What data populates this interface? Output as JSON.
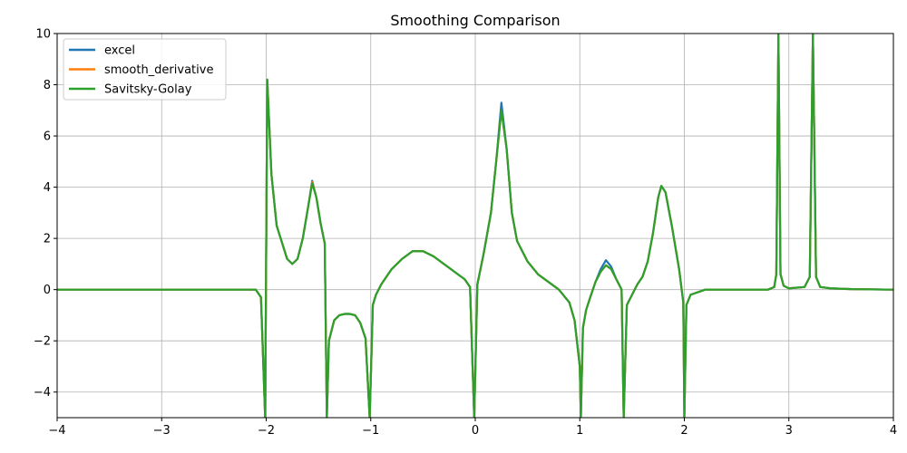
{
  "chart_data": {
    "type": "line",
    "title": "Smoothing Comparison",
    "xlabel": "",
    "ylabel": "",
    "xlim": [
      -4,
      4
    ],
    "ylim": [
      -5,
      10
    ],
    "xticks": [
      -4,
      -3,
      -2,
      -1,
      0,
      1,
      2,
      3,
      4
    ],
    "yticks": [
      -4,
      -2,
      0,
      2,
      4,
      6,
      8,
      10
    ],
    "grid": true,
    "legend": "top-left",
    "series": [
      {
        "name": "excel",
        "color": "#1f77b4",
        "points": [
          [
            -4,
            0
          ],
          [
            -2.3,
            0
          ],
          [
            -2.1,
            0
          ],
          [
            -2.05,
            -0.3
          ],
          [
            -2.01,
            -5
          ],
          [
            -1.99,
            8.2
          ],
          [
            -1.95,
            4.5
          ],
          [
            -1.9,
            2.5
          ],
          [
            -1.8,
            1.2
          ],
          [
            -1.75,
            1.0
          ],
          [
            -1.7,
            1.2
          ],
          [
            -1.65,
            2.0
          ],
          [
            -1.6,
            3.2
          ],
          [
            -1.56,
            4.25
          ],
          [
            -1.52,
            3.6
          ],
          [
            -1.48,
            2.6
          ],
          [
            -1.44,
            1.8
          ],
          [
            -1.42,
            -5
          ],
          [
            -1.4,
            -2.0
          ],
          [
            -1.35,
            -1.2
          ],
          [
            -1.3,
            -1.0
          ],
          [
            -1.25,
            -0.95
          ],
          [
            -1.2,
            -0.95
          ],
          [
            -1.15,
            -1.0
          ],
          [
            -1.1,
            -1.3
          ],
          [
            -1.05,
            -1.9
          ],
          [
            -1.01,
            -5
          ],
          [
            -0.98,
            -0.6
          ],
          [
            -0.95,
            -0.2
          ],
          [
            -0.9,
            0.2
          ],
          [
            -0.8,
            0.8
          ],
          [
            -0.7,
            1.2
          ],
          [
            -0.6,
            1.5
          ],
          [
            -0.5,
            1.5
          ],
          [
            -0.4,
            1.3
          ],
          [
            -0.3,
            1.0
          ],
          [
            -0.2,
            0.7
          ],
          [
            -0.1,
            0.4
          ],
          [
            -0.05,
            0.1
          ],
          [
            -0.01,
            -5
          ],
          [
            0.02,
            0.2
          ],
          [
            0.08,
            1.4
          ],
          [
            0.15,
            3.0
          ],
          [
            0.2,
            5.0
          ],
          [
            0.25,
            7.3
          ],
          [
            0.3,
            5.5
          ],
          [
            0.35,
            3.0
          ],
          [
            0.4,
            1.9
          ],
          [
            0.5,
            1.1
          ],
          [
            0.6,
            0.6
          ],
          [
            0.7,
            0.3
          ],
          [
            0.8,
            0.0
          ],
          [
            0.9,
            -0.5
          ],
          [
            0.95,
            -1.2
          ],
          [
            1.0,
            -3.0
          ],
          [
            1.01,
            -5
          ],
          [
            1.03,
            -1.5
          ],
          [
            1.06,
            -0.8
          ],
          [
            1.1,
            -0.3
          ],
          [
            1.15,
            0.3
          ],
          [
            1.2,
            0.8
          ],
          [
            1.25,
            1.15
          ],
          [
            1.3,
            0.9
          ],
          [
            1.35,
            0.4
          ],
          [
            1.4,
            0.0
          ],
          [
            1.42,
            -5
          ],
          [
            1.45,
            -0.6
          ],
          [
            1.5,
            -0.2
          ],
          [
            1.55,
            0.2
          ],
          [
            1.6,
            0.5
          ],
          [
            1.65,
            1.1
          ],
          [
            1.7,
            2.2
          ],
          [
            1.75,
            3.6
          ],
          [
            1.78,
            4.05
          ],
          [
            1.82,
            3.8
          ],
          [
            1.88,
            2.5
          ],
          [
            1.95,
            0.8
          ],
          [
            1.99,
            -0.5
          ],
          [
            2.0,
            -5
          ],
          [
            2.02,
            -0.6
          ],
          [
            2.06,
            -0.2
          ],
          [
            2.2,
            0
          ],
          [
            2.8,
            0
          ],
          [
            2.86,
            0.1
          ],
          [
            2.88,
            0.6
          ],
          [
            2.9,
            10
          ],
          [
            2.92,
            0.6
          ],
          [
            2.95,
            0.15
          ],
          [
            3.0,
            0.05
          ],
          [
            3.15,
            0.1
          ],
          [
            3.2,
            0.5
          ],
          [
            3.23,
            10
          ],
          [
            3.26,
            0.5
          ],
          [
            3.3,
            0.1
          ],
          [
            3.4,
            0.05
          ],
          [
            3.6,
            0.02
          ],
          [
            4,
            0
          ]
        ]
      },
      {
        "name": "smooth_derivative",
        "color": "#ff7f0e",
        "points": [
          [
            -4,
            0
          ],
          [
            -2.3,
            0
          ],
          [
            -2.1,
            0
          ],
          [
            -2.05,
            -0.3
          ],
          [
            -2.01,
            -5
          ],
          [
            -1.99,
            8.2
          ],
          [
            -1.95,
            4.5
          ],
          [
            -1.9,
            2.5
          ],
          [
            -1.8,
            1.2
          ],
          [
            -1.75,
            1.0
          ],
          [
            -1.7,
            1.2
          ],
          [
            -1.65,
            2.0
          ],
          [
            -1.6,
            3.2
          ],
          [
            -1.56,
            4.2
          ],
          [
            -1.52,
            3.6
          ],
          [
            -1.48,
            2.6
          ],
          [
            -1.44,
            1.8
          ],
          [
            -1.42,
            -5
          ],
          [
            -1.4,
            -2.0
          ],
          [
            -1.35,
            -1.2
          ],
          [
            -1.3,
            -1.0
          ],
          [
            -1.25,
            -0.95
          ],
          [
            -1.2,
            -0.95
          ],
          [
            -1.15,
            -1.0
          ],
          [
            -1.1,
            -1.3
          ],
          [
            -1.05,
            -1.9
          ],
          [
            -1.01,
            -5
          ],
          [
            -0.98,
            -0.6
          ],
          [
            -0.95,
            -0.2
          ],
          [
            -0.9,
            0.2
          ],
          [
            -0.8,
            0.8
          ],
          [
            -0.7,
            1.2
          ],
          [
            -0.6,
            1.5
          ],
          [
            -0.5,
            1.5
          ],
          [
            -0.4,
            1.3
          ],
          [
            -0.3,
            1.0
          ],
          [
            -0.2,
            0.7
          ],
          [
            -0.1,
            0.4
          ],
          [
            -0.05,
            0.1
          ],
          [
            -0.01,
            -5
          ],
          [
            0.02,
            0.2
          ],
          [
            0.08,
            1.4
          ],
          [
            0.15,
            3.0
          ],
          [
            0.2,
            5.0
          ],
          [
            0.25,
            7.0
          ],
          [
            0.3,
            5.5
          ],
          [
            0.35,
            3.0
          ],
          [
            0.4,
            1.9
          ],
          [
            0.5,
            1.1
          ],
          [
            0.6,
            0.6
          ],
          [
            0.7,
            0.3
          ],
          [
            0.8,
            0.0
          ],
          [
            0.9,
            -0.5
          ],
          [
            0.95,
            -1.2
          ],
          [
            1.0,
            -3.0
          ],
          [
            1.01,
            -5
          ],
          [
            1.03,
            -1.5
          ],
          [
            1.06,
            -0.8
          ],
          [
            1.1,
            -0.3
          ],
          [
            1.15,
            0.3
          ],
          [
            1.2,
            0.7
          ],
          [
            1.25,
            0.95
          ],
          [
            1.3,
            0.8
          ],
          [
            1.35,
            0.4
          ],
          [
            1.4,
            0.0
          ],
          [
            1.42,
            -5
          ],
          [
            1.45,
            -0.6
          ],
          [
            1.5,
            -0.2
          ],
          [
            1.55,
            0.2
          ],
          [
            1.6,
            0.5
          ],
          [
            1.65,
            1.1
          ],
          [
            1.7,
            2.2
          ],
          [
            1.75,
            3.6
          ],
          [
            1.78,
            4.05
          ],
          [
            1.82,
            3.8
          ],
          [
            1.88,
            2.5
          ],
          [
            1.95,
            0.8
          ],
          [
            1.99,
            -0.5
          ],
          [
            2.0,
            -5
          ],
          [
            2.02,
            -0.6
          ],
          [
            2.06,
            -0.2
          ],
          [
            2.2,
            0
          ],
          [
            2.8,
            0
          ],
          [
            2.86,
            0.1
          ],
          [
            2.88,
            0.6
          ],
          [
            2.9,
            10
          ],
          [
            2.92,
            0.6
          ],
          [
            2.95,
            0.15
          ],
          [
            3.0,
            0.05
          ],
          [
            3.15,
            0.1
          ],
          [
            3.2,
            0.5
          ],
          [
            3.23,
            10
          ],
          [
            3.26,
            0.5
          ],
          [
            3.3,
            0.1
          ],
          [
            3.4,
            0.05
          ],
          [
            3.6,
            0.02
          ],
          [
            4,
            0
          ]
        ]
      },
      {
        "name": "Savitsky-Golay",
        "color": "#2ca02c",
        "points": [
          [
            -4,
            0
          ],
          [
            -2.3,
            0
          ],
          [
            -2.1,
            0
          ],
          [
            -2.05,
            -0.3
          ],
          [
            -2.01,
            -5
          ],
          [
            -1.99,
            8.2
          ],
          [
            -1.95,
            4.5
          ],
          [
            -1.9,
            2.5
          ],
          [
            -1.8,
            1.2
          ],
          [
            -1.75,
            1.0
          ],
          [
            -1.7,
            1.2
          ],
          [
            -1.65,
            2.0
          ],
          [
            -1.6,
            3.2
          ],
          [
            -1.56,
            4.15
          ],
          [
            -1.52,
            3.6
          ],
          [
            -1.48,
            2.6
          ],
          [
            -1.44,
            1.8
          ],
          [
            -1.42,
            -5
          ],
          [
            -1.4,
            -2.0
          ],
          [
            -1.35,
            -1.2
          ],
          [
            -1.3,
            -1.0
          ],
          [
            -1.25,
            -0.95
          ],
          [
            -1.2,
            -0.95
          ],
          [
            -1.15,
            -1.0
          ],
          [
            -1.1,
            -1.3
          ],
          [
            -1.05,
            -1.9
          ],
          [
            -1.01,
            -5
          ],
          [
            -0.98,
            -0.6
          ],
          [
            -0.95,
            -0.2
          ],
          [
            -0.9,
            0.2
          ],
          [
            -0.8,
            0.8
          ],
          [
            -0.7,
            1.2
          ],
          [
            -0.6,
            1.5
          ],
          [
            -0.5,
            1.5
          ],
          [
            -0.4,
            1.3
          ],
          [
            -0.3,
            1.0
          ],
          [
            -0.2,
            0.7
          ],
          [
            -0.1,
            0.4
          ],
          [
            -0.05,
            0.1
          ],
          [
            -0.01,
            -5
          ],
          [
            0.02,
            0.2
          ],
          [
            0.08,
            1.4
          ],
          [
            0.15,
            3.0
          ],
          [
            0.2,
            5.0
          ],
          [
            0.25,
            7.0
          ],
          [
            0.3,
            5.5
          ],
          [
            0.35,
            3.0
          ],
          [
            0.4,
            1.9
          ],
          [
            0.5,
            1.1
          ],
          [
            0.6,
            0.6
          ],
          [
            0.7,
            0.3
          ],
          [
            0.8,
            0.0
          ],
          [
            0.9,
            -0.5
          ],
          [
            0.95,
            -1.2
          ],
          [
            1.0,
            -3.0
          ],
          [
            1.01,
            -5
          ],
          [
            1.03,
            -1.5
          ],
          [
            1.06,
            -0.8
          ],
          [
            1.1,
            -0.3
          ],
          [
            1.15,
            0.3
          ],
          [
            1.2,
            0.7
          ],
          [
            1.25,
            0.95
          ],
          [
            1.3,
            0.8
          ],
          [
            1.35,
            0.4
          ],
          [
            1.4,
            0.0
          ],
          [
            1.42,
            -5
          ],
          [
            1.45,
            -0.6
          ],
          [
            1.5,
            -0.2
          ],
          [
            1.55,
            0.2
          ],
          [
            1.6,
            0.5
          ],
          [
            1.65,
            1.1
          ],
          [
            1.7,
            2.2
          ],
          [
            1.75,
            3.6
          ],
          [
            1.78,
            4.05
          ],
          [
            1.82,
            3.8
          ],
          [
            1.88,
            2.5
          ],
          [
            1.95,
            0.8
          ],
          [
            1.99,
            -0.5
          ],
          [
            2.0,
            -5
          ],
          [
            2.02,
            -0.6
          ],
          [
            2.06,
            -0.2
          ],
          [
            2.2,
            0
          ],
          [
            2.8,
            0
          ],
          [
            2.86,
            0.1
          ],
          [
            2.88,
            0.6
          ],
          [
            2.9,
            10
          ],
          [
            2.92,
            0.6
          ],
          [
            2.95,
            0.15
          ],
          [
            3.0,
            0.05
          ],
          [
            3.15,
            0.1
          ],
          [
            3.2,
            0.5
          ],
          [
            3.23,
            10
          ],
          [
            3.26,
            0.5
          ],
          [
            3.3,
            0.1
          ],
          [
            3.4,
            0.05
          ],
          [
            3.6,
            0.02
          ],
          [
            4,
            0
          ]
        ]
      }
    ]
  }
}
